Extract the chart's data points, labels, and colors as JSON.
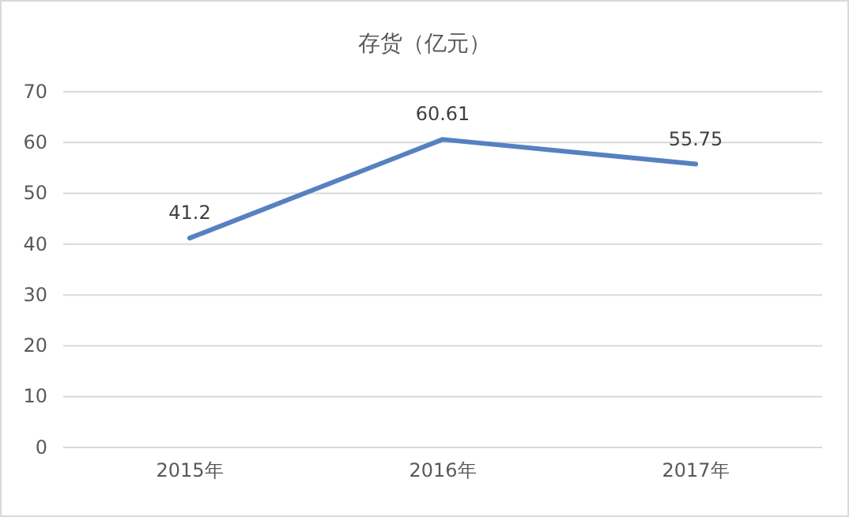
{
  "chart_data": {
    "type": "line",
    "title": "存货（亿元）",
    "categories": [
      "2015年",
      "2016年",
      "2017年"
    ],
    "series": [
      {
        "color": "#5581c1",
        "values": [
          41.2,
          60.61,
          55.75
        ]
      }
    ],
    "ylim": [
      0,
      70
    ],
    "yticks": [
      0,
      10,
      20,
      30,
      40,
      50,
      60,
      70
    ],
    "grid": "y",
    "data_labels": true,
    "marker": "none",
    "line_style": "solid"
  }
}
